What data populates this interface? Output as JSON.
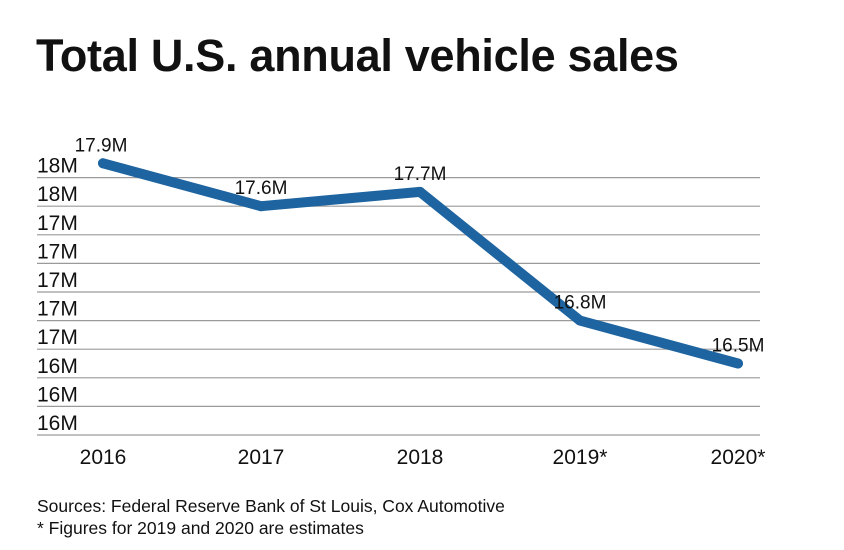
{
  "chart_data": {
    "type": "line",
    "title": "Total U.S. annual vehicle sales",
    "xlabel": "",
    "ylabel": "",
    "categories": [
      "2016",
      "2017",
      "2018",
      "2019*",
      "2020*"
    ],
    "values": [
      17.9,
      17.6,
      17.7,
      16.8,
      16.5
    ],
    "data_labels": [
      "17.9M",
      "17.6M",
      "17.7M",
      "16.8M",
      "16.5M"
    ],
    "yticks": [
      16.0,
      16.2,
      16.4,
      16.6,
      16.8,
      17.0,
      17.2,
      17.4,
      17.6,
      17.8
    ],
    "ytick_labels": [
      "16M",
      "16M",
      "16M",
      "17M",
      "17M",
      "17M",
      "17M",
      "17M",
      "18M",
      "18M"
    ],
    "ylim": [
      16.0,
      17.8
    ],
    "grid": true,
    "legend": "none",
    "line_color": "#1e64a0"
  },
  "footer": {
    "sources": "Sources: Federal Reserve Bank of St Louis, Cox Automotive",
    "note": "* Figures for 2019 and 2020 are estimates"
  }
}
